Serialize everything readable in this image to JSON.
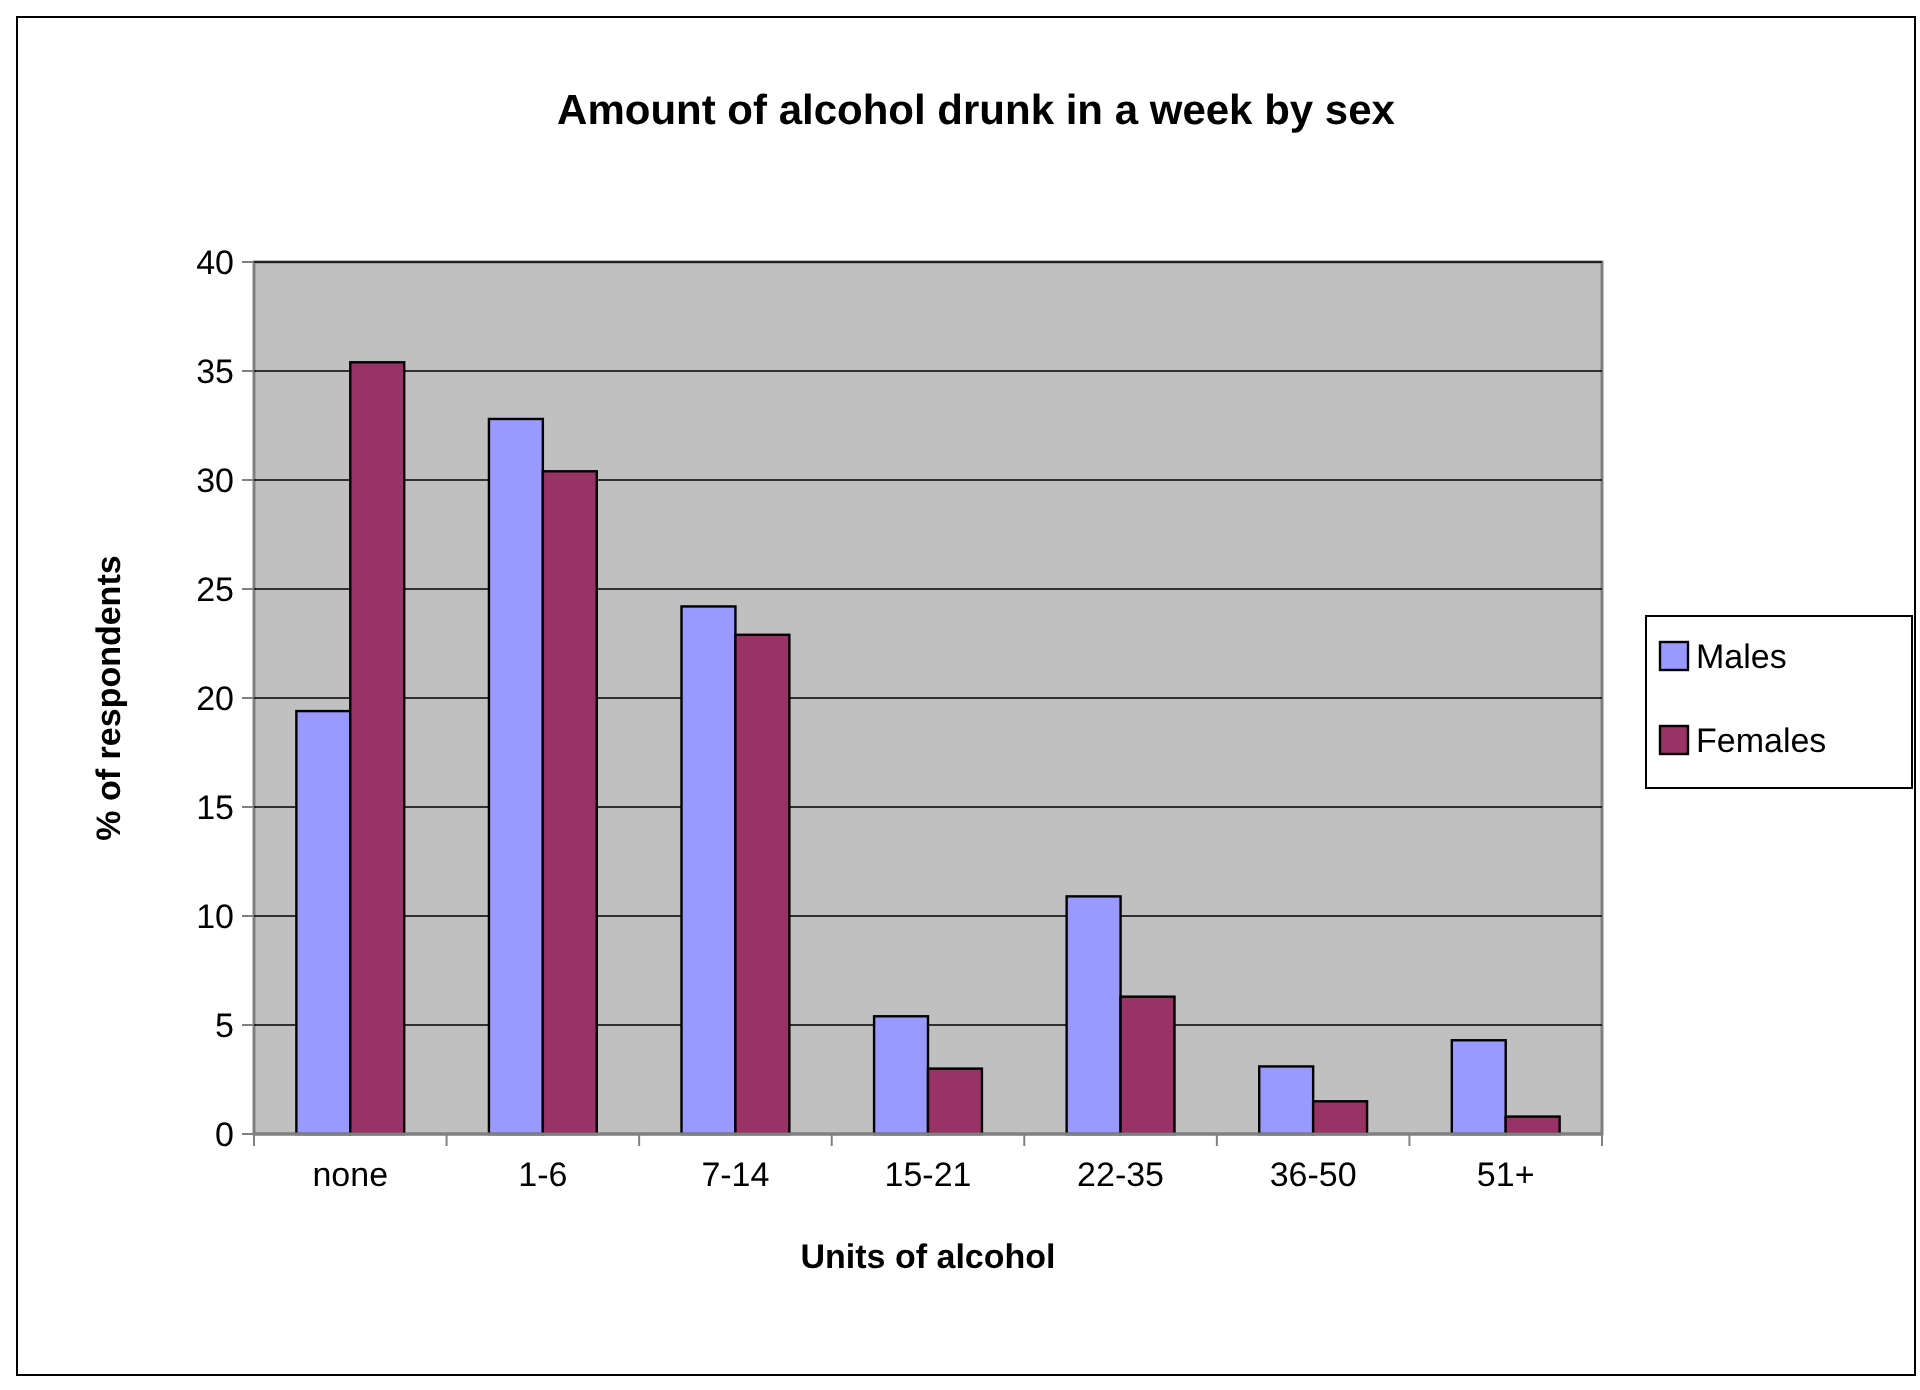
{
  "chart_data": {
    "type": "bar",
    "title": "Amount of alcohol drunk in a week by sex",
    "xlabel": "Units of alcohol",
    "ylabel": "% of respondents",
    "categories": [
      "none",
      "1-6",
      "7-14",
      "15-21",
      "22-35",
      "36-50",
      "51+"
    ],
    "series": [
      {
        "name": "Males",
        "color": "#9999ff",
        "values": [
          19.4,
          32.8,
          24.2,
          5.4,
          10.9,
          3.1,
          4.3
        ]
      },
      {
        "name": "Females",
        "color": "#993366",
        "values": [
          35.4,
          30.4,
          22.9,
          3.0,
          6.3,
          1.5,
          0.8
        ]
      }
    ],
    "ylim": [
      0,
      40
    ],
    "yticks": [
      0,
      5,
      10,
      15,
      20,
      25,
      30,
      35,
      40
    ],
    "grid": "y",
    "legend": "right"
  }
}
